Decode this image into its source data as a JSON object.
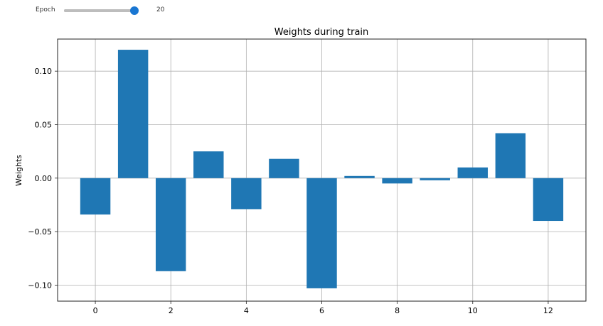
{
  "slider": {
    "label": "Epoch",
    "value": "20",
    "fraction": 1.0,
    "accent": "#1976d2"
  },
  "chart_data": {
    "type": "bar",
    "title": "Weights during train",
    "xlabel": "",
    "ylabel": "Weights",
    "x": [
      0,
      1,
      2,
      3,
      4,
      5,
      6,
      7,
      8,
      9,
      10,
      11,
      12
    ],
    "values": [
      -0.034,
      0.12,
      -0.087,
      0.025,
      -0.029,
      0.018,
      -0.103,
      0.002,
      -0.005,
      -0.002,
      0.01,
      0.042,
      -0.04
    ],
    "xlim": [
      -1,
      13
    ],
    "ylim": [
      -0.115,
      0.13
    ],
    "xticks": [
      "0",
      "2",
      "4",
      "6",
      "8",
      "10",
      "12"
    ],
    "yticks": [
      "0.10",
      "0.05",
      "0.00",
      "−0.05",
      "−0.10"
    ],
    "grid": true,
    "bar_color": "#1f77b4"
  }
}
